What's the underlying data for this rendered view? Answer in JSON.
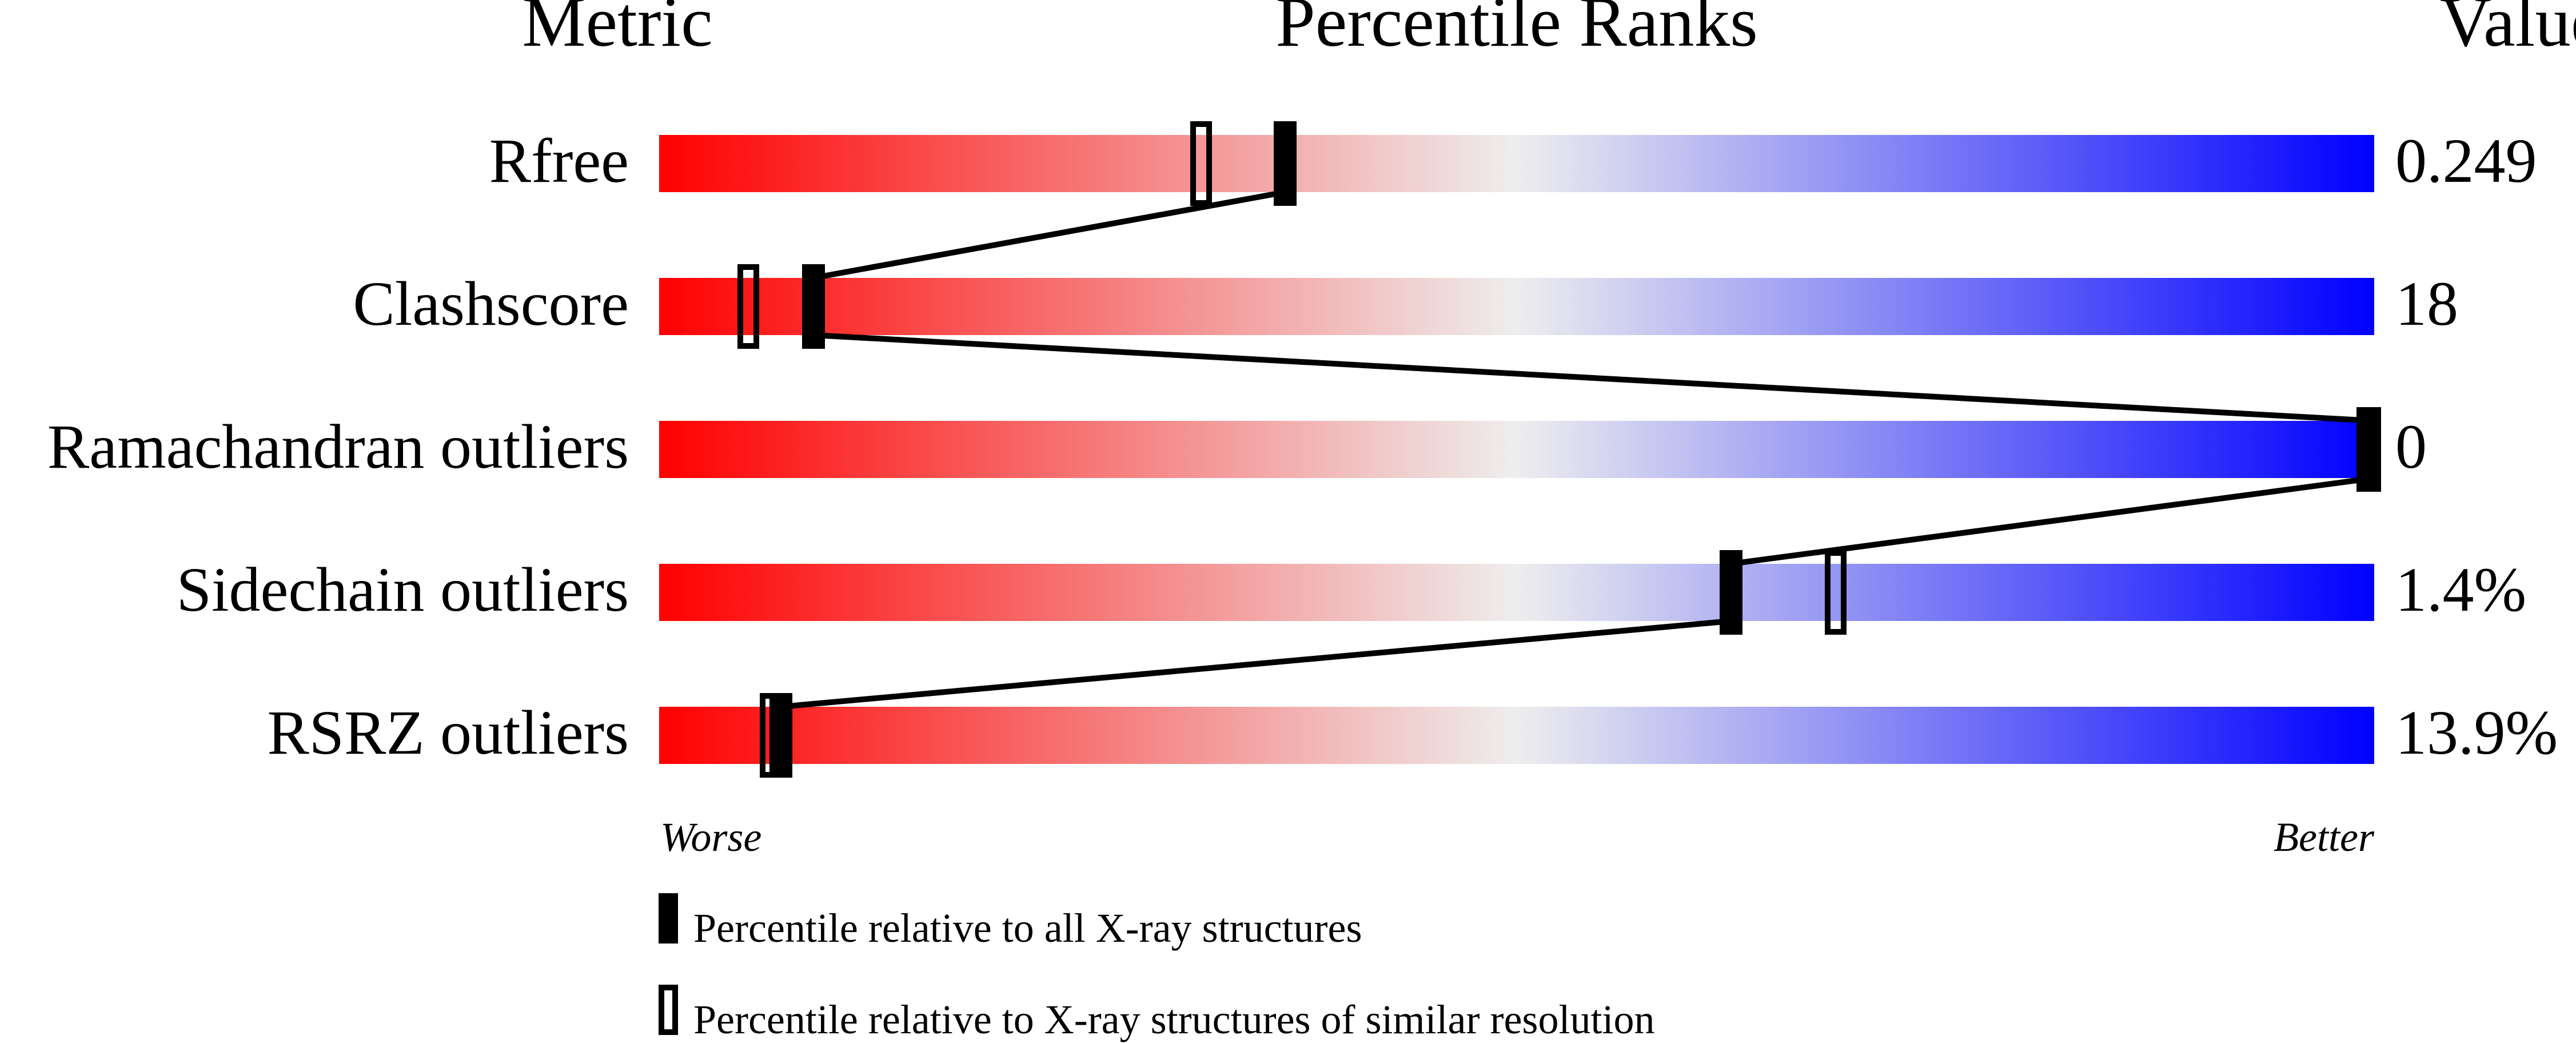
{
  "chart_data": {
    "type": "percentile-slider",
    "headers": {
      "metric": "Metric",
      "ranks": "Percentile Ranks",
      "value": "Value"
    },
    "axis": {
      "left_label": "Worse",
      "right_label": "Better",
      "range": [
        0,
        100
      ]
    },
    "gradient_colors": [
      "#ff0000",
      "#eeeeee",
      "#0000ff"
    ],
    "metrics": [
      {
        "name": "Rfree",
        "value": "0.249",
        "percentile_all": 36.5,
        "percentile_similar": 31.6
      },
      {
        "name": "Clashscore",
        "value": "18",
        "percentile_all": 9.0,
        "percentile_similar": 5.2
      },
      {
        "name": "Ramachandran outliers",
        "value": "0",
        "percentile_all": 100,
        "percentile_similar": 100
      },
      {
        "name": "Sidechain outliers",
        "value": "1.4%",
        "percentile_all": 62.5,
        "percentile_similar": 68.6
      },
      {
        "name": "RSRZ outliers",
        "value": "13.9%",
        "percentile_all": 7.1,
        "percentile_similar": 6.5
      }
    ],
    "legend": [
      {
        "marker": "filled",
        "label": "Percentile relative to all X-ray structures"
      },
      {
        "marker": "open",
        "label": "Percentile relative to X-ray structures of similar resolution"
      }
    ]
  }
}
